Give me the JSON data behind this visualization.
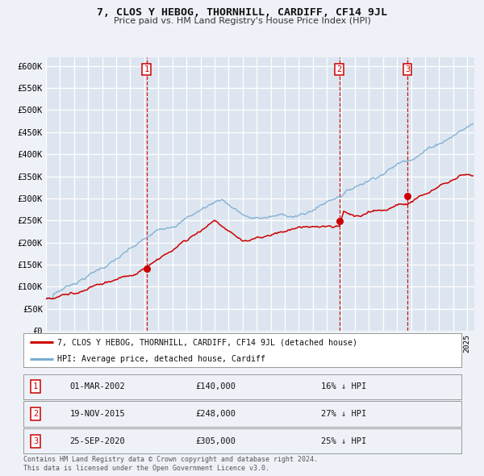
{
  "title": "7, CLOS Y HEBOG, THORNHILL, CARDIFF, CF14 9JL",
  "subtitle": "Price paid vs. HM Land Registry's House Price Index (HPI)",
  "ylim": [
    0,
    620000
  ],
  "yticks": [
    0,
    50000,
    100000,
    150000,
    200000,
    250000,
    300000,
    350000,
    400000,
    450000,
    500000,
    550000,
    600000
  ],
  "ytick_labels": [
    "£0",
    "£50K",
    "£100K",
    "£150K",
    "£200K",
    "£250K",
    "£300K",
    "£350K",
    "£400K",
    "£450K",
    "£500K",
    "£550K",
    "£600K"
  ],
  "xlim_start": 1995.0,
  "xlim_end": 2025.5,
  "background_color": "#eef2f8",
  "plot_bg_color": "#dde6f0",
  "grid_color": "#ffffff",
  "red_line_color": "#cc0000",
  "blue_line_color": "#7aabcf",
  "dashed_line_color": "#cc0000",
  "sale_points": [
    {
      "date_num": 2002.17,
      "price": 140000,
      "label": "1"
    },
    {
      "date_num": 2015.89,
      "price": 248000,
      "label": "2"
    },
    {
      "date_num": 2020.73,
      "price": 305000,
      "label": "3"
    }
  ],
  "vline_dates": [
    2002.17,
    2015.89,
    2020.73
  ],
  "legend_red_label": "7, CLOS Y HEBOG, THORNHILL, CARDIFF, CF14 9JL (detached house)",
  "legend_blue_label": "HPI: Average price, detached house, Cardiff",
  "table_rows": [
    {
      "num": "1",
      "date": "01-MAR-2002",
      "price": "£140,000",
      "hpi": "16% ↓ HPI"
    },
    {
      "num": "2",
      "date": "19-NOV-2015",
      "price": "£248,000",
      "hpi": "27% ↓ HPI"
    },
    {
      "num": "3",
      "date": "25-SEP-2020",
      "price": "£305,000",
      "hpi": "25% ↓ HPI"
    }
  ],
  "footer": "Contains HM Land Registry data © Crown copyright and database right 2024.\nThis data is licensed under the Open Government Licence v3.0."
}
